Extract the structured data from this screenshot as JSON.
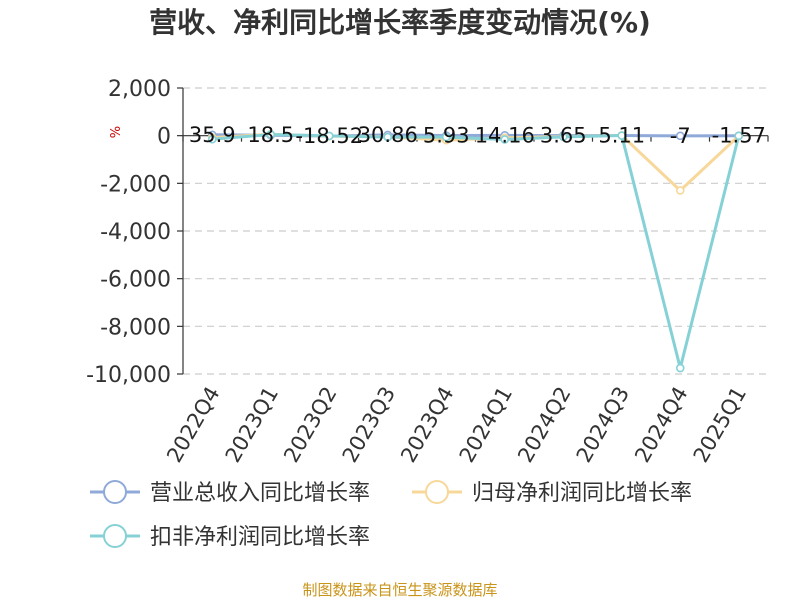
{
  "chart_data": {
    "type": "line",
    "title": "营收、净利同比增长率季度变动情况(%)",
    "ylabel": "%",
    "ylim": [
      -10000,
      2000
    ],
    "yticks": [
      "2,000",
      "0",
      "-2,000",
      "-4,000",
      "-6,000",
      "-8,000",
      "-10,000"
    ],
    "ytick_values": [
      2000,
      0,
      -2000,
      -4000,
      -6000,
      -8000,
      -10000
    ],
    "categories": [
      "2022Q4",
      "2023Q1",
      "2023Q2",
      "2023Q3",
      "2023Q4",
      "2024Q1",
      "2024Q2",
      "2024Q3",
      "2024Q4",
      "2025Q1"
    ],
    "grid": true,
    "legend_position": "bottom",
    "series": [
      {
        "name": "营业总收入同比增长率",
        "color": "#8fa9d8",
        "values": [
          35.9,
          18.5,
          -18.52,
          30.86,
          5.93,
          14.16,
          3.65,
          5.11,
          -7,
          -1.57
        ],
        "labels": [
          "35.9",
          "18.5",
          "-18.52",
          "30.86",
          "5.93",
          "14.16",
          "3.65",
          "5.11",
          "-7",
          "-1.57"
        ]
      },
      {
        "name": "归母净利润同比增长率",
        "color": "#f7d89a",
        "values": [
          -80,
          60,
          -20,
          -50,
          -190,
          -90,
          -40,
          10,
          -2300,
          -10
        ]
      },
      {
        "name": "扣非净利润同比增长率",
        "color": "#86d1d6",
        "values": [
          -150,
          50,
          -10,
          -60,
          -60,
          -160,
          -50,
          5,
          -9750,
          -5
        ]
      }
    ]
  },
  "source_text": "制图数据来自恒生聚源数据库"
}
